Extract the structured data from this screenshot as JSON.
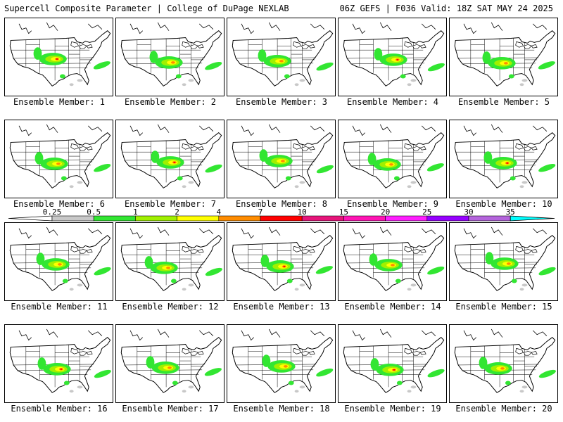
{
  "header": {
    "title": "Supercell Composite Parameter | College of DuPage NEXLAB",
    "valid": "06Z GEFS | F036 Valid: 18Z SAT MAY 24 2025"
  },
  "members": [
    {
      "label": "Ensemble Member: 1"
    },
    {
      "label": "Ensemble Member: 2"
    },
    {
      "label": "Ensemble Member: 3"
    },
    {
      "label": "Ensemble Member: 4"
    },
    {
      "label": "Ensemble Member: 5"
    },
    {
      "label": "Ensemble Member: 6"
    },
    {
      "label": "Ensemble Member: 7"
    },
    {
      "label": "Ensemble Member: 8"
    },
    {
      "label": "Ensemble Member: 9"
    },
    {
      "label": "Ensemble Member: 10"
    },
    {
      "label": "Ensemble Member: 11"
    },
    {
      "label": "Ensemble Member: 12"
    },
    {
      "label": "Ensemble Member: 13"
    },
    {
      "label": "Ensemble Member: 14"
    },
    {
      "label": "Ensemble Member: 15"
    },
    {
      "label": "Ensemble Member: 16"
    },
    {
      "label": "Ensemble Member: 17"
    },
    {
      "label": "Ensemble Member: 18"
    },
    {
      "label": "Ensemble Member: 19"
    },
    {
      "label": "Ensemble Member: 20"
    }
  ],
  "legend": {
    "ticks": [
      "0.25",
      "0.5",
      "1",
      "2",
      "4",
      "7",
      "10",
      "15",
      "20",
      "25",
      "30",
      "35"
    ],
    "colors": [
      "#c8c8c8",
      "#32e632",
      "#a0f000",
      "#ffff00",
      "#ff8c00",
      "#ff0000",
      "#e6147a",
      "#ff14b4",
      "#ff1eff",
      "#9600ff",
      "#b464dc",
      "#00ffff"
    ]
  }
}
